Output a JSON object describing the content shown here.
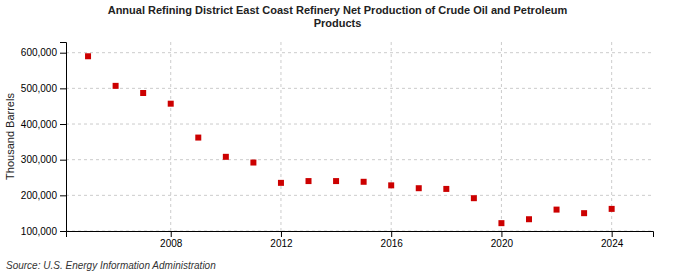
{
  "chart_data": {
    "type": "scatter",
    "title": "Annual Refining District East Coast Refinery Net Production of Crude Oil and Petroleum\nProducts",
    "ylabel": "Thousand Barrels",
    "source": "Source: U.S. Energy Information Administration",
    "x": [
      2005,
      2006,
      2007,
      2008,
      2009,
      2010,
      2011,
      2012,
      2013,
      2014,
      2015,
      2016,
      2017,
      2018,
      2019,
      2020,
      2021,
      2022,
      2023,
      2024
    ],
    "values": [
      590000,
      507000,
      487000,
      457000,
      362000,
      308000,
      292000,
      235000,
      240000,
      240000,
      238000,
      228000,
      220000,
      218000,
      192000,
      122000,
      133000,
      160000,
      150000,
      162000
    ],
    "color": "#cc0000",
    "marker": "square",
    "xlim": [
      2004.2,
      2025.5
    ],
    "xticks": [
      2008,
      2012,
      2016,
      2020,
      2024
    ],
    "ylim": [
      100000,
      630000
    ],
    "yticks": [
      {
        "value": 100000,
        "label": "100,000"
      },
      {
        "value": 200000,
        "label": "200,000"
      },
      {
        "value": 300000,
        "label": "300,000"
      },
      {
        "value": 400000,
        "label": "400,000"
      },
      {
        "value": 500000,
        "label": "500,000"
      },
      {
        "value": 600000,
        "label": "600,000"
      }
    ],
    "grid": true
  }
}
